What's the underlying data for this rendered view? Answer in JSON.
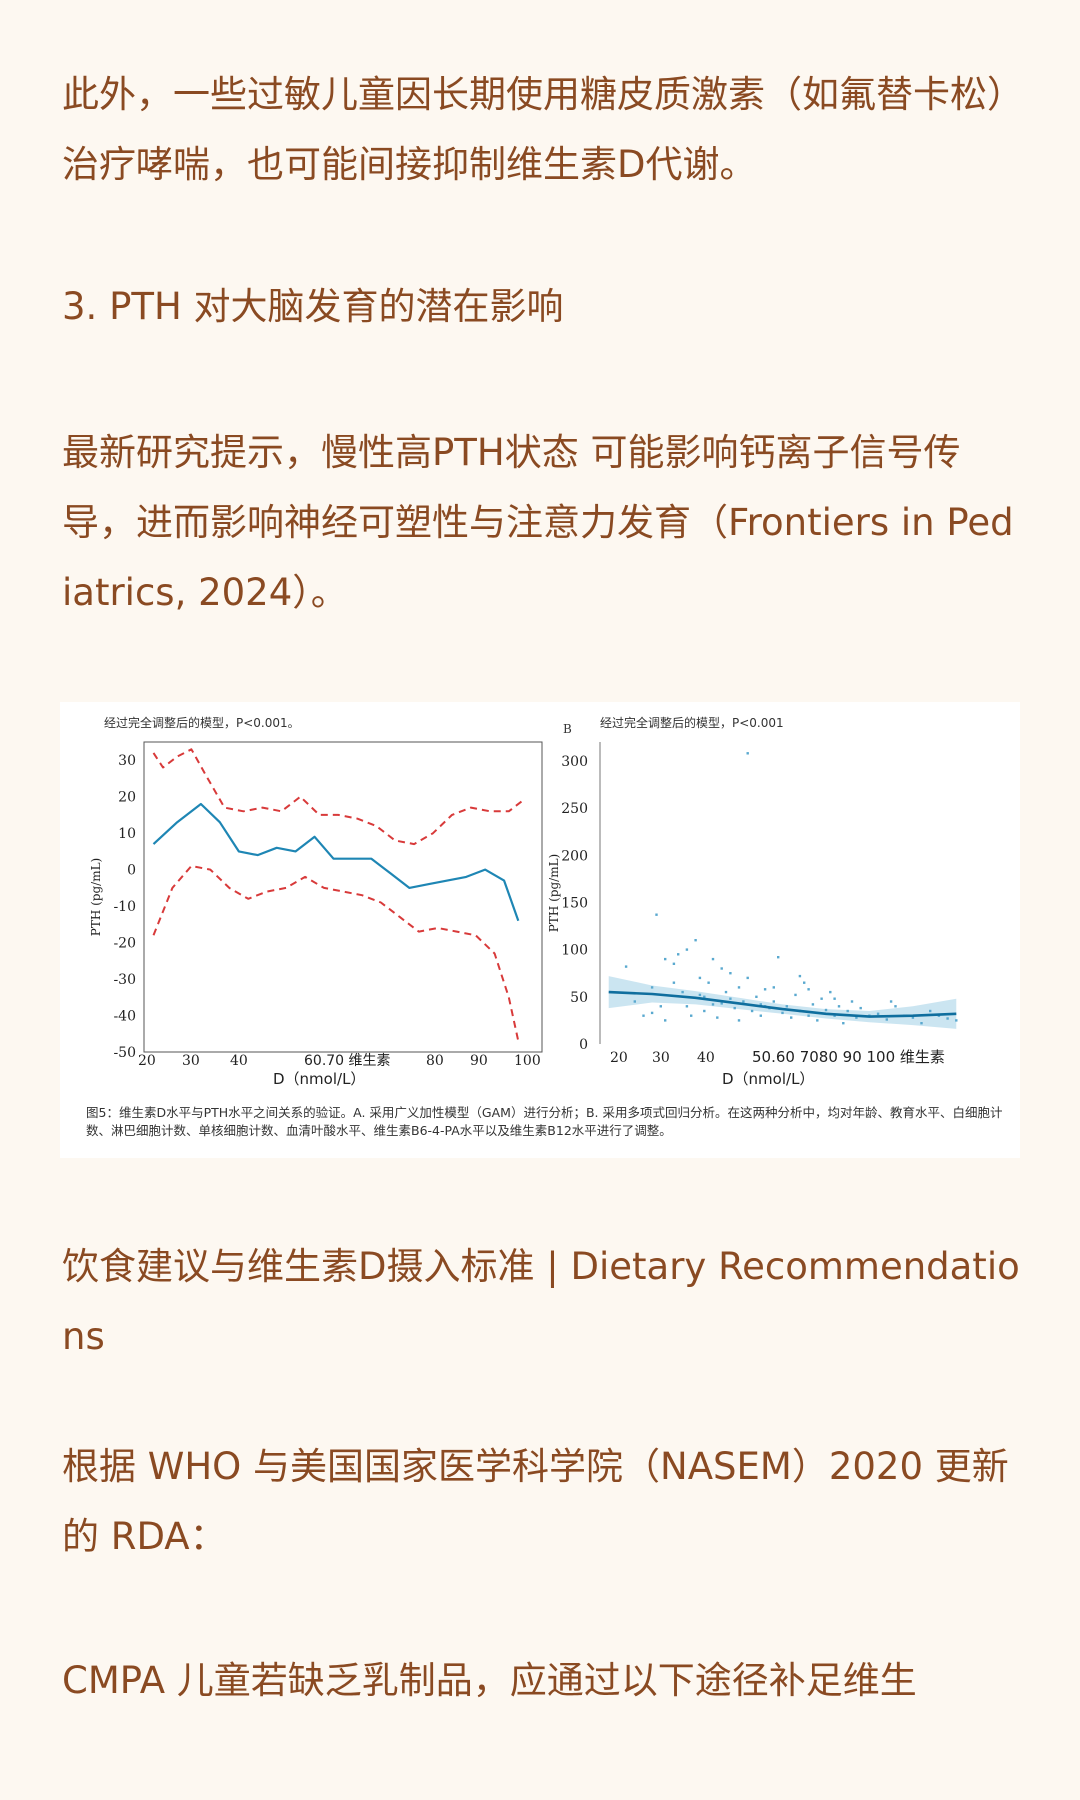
{
  "paragraphs": {
    "p1": "此外，一些过敏儿童因长期使用糖皮质激素（如氟替卡松）治疗哮喘，也可能间接抑制维生素D代谢。",
    "p2": "3. PTH 对大脑发育的潜在影响",
    "p3": "最新研究提示，慢性高PTH状态 可能影响钙离子信号传导，进而影响神经可塑性与注意力发育（Frontiers in Pediatrics, 2024）。",
    "p4": "饮食建议与维生素D摄入标准 | Dietary Recommendations",
    "p5": "根据 WHO 与美国国家医学科学院（NASEM）2020 更新的 RDA：",
    "p6": "CMPA 儿童若缺乏乳制品，应通过以下途径补足维生"
  },
  "figure": {
    "caption": "图5：维生素D水平与PTH水平之间关系的验证。A. 采用广义加性模型（GAM）进行分析；B. 采用多项式回归分析。在这两种分析中，均对年龄、教育水平、白细胞计数、淋巴细胞计数、单核细胞计数、血清叶酸水平、维生素B6-4-PA水平以及维生素B12水平进行了调整。",
    "colors": {
      "fit": "#1e86b4",
      "ci": "#d83a3a",
      "band": "#b9dcec",
      "points": "#5aa9cf"
    }
  },
  "chart_data": [
    {
      "type": "line",
      "title": "经过完全调整后的模型，P<0.001。",
      "xlabel": "D（nmol/L）",
      "ylabel": "PTH (pg/mL)",
      "x_tick_labels": [
        "20",
        "30",
        "40",
        "60.70 维生素",
        "80",
        "90",
        "100"
      ],
      "y_tick_labels": [
        "30",
        "20",
        "10",
        "0",
        "-10",
        "-20",
        "-30",
        "-40",
        "-50"
      ],
      "xlim": [
        18,
        102
      ],
      "ylim": [
        -50,
        35
      ],
      "series": [
        {
          "style": "solid",
          "x": [
            20,
            25,
            30,
            34,
            38,
            42,
            46,
            50,
            54,
            58,
            62,
            66,
            70,
            74,
            78,
            82,
            86,
            90,
            94,
            97
          ],
          "y": [
            7,
            13,
            18,
            13,
            5,
            4,
            6,
            5,
            9,
            3,
            3,
            3,
            -1,
            -5,
            -4,
            -3,
            -2,
            0,
            -3,
            -14
          ]
        },
        {
          "style": "dashed",
          "x": [
            20,
            22,
            25,
            28,
            31,
            35,
            39,
            43,
            47,
            51,
            55,
            59,
            63,
            67,
            71,
            75,
            79,
            83,
            87,
            91,
            95,
            98
          ],
          "y": [
            32,
            28,
            31,
            33,
            26,
            17,
            16,
            17,
            16,
            20,
            15,
            15,
            14,
            12,
            8,
            7,
            10,
            15,
            17,
            16,
            16,
            19
          ]
        },
        {
          "style": "dashed",
          "x": [
            20,
            24,
            28,
            32,
            36,
            40,
            44,
            48,
            52,
            56,
            60,
            64,
            68,
            72,
            76,
            80,
            84,
            88,
            92,
            95,
            97
          ],
          "y": [
            -18,
            -5,
            1,
            0,
            -5,
            -8,
            -6,
            -5,
            -2,
            -5,
            -6,
            -7,
            -9,
            -13,
            -17,
            -16,
            -17,
            -18,
            -23,
            -35,
            -47
          ]
        }
      ]
    },
    {
      "type": "scatter",
      "panel_label": "B",
      "title": "经过完全调整后的模型，P<0.001",
      "xlabel": "D（nmol/L）",
      "ylabel": "PTH (pg/mL)",
      "x_tick_labels": [
        "20",
        "30",
        "40",
        "50.60 7080 90 100 维生素"
      ],
      "y_tick_labels": [
        "300",
        "250",
        "200",
        "150",
        "100",
        "50",
        "0"
      ],
      "xlim": [
        18,
        102
      ],
      "ylim": [
        0,
        320
      ],
      "fit": {
        "x": [
          20,
          30,
          40,
          50,
          60,
          70,
          80,
          90,
          100
        ],
        "y": [
          55,
          53,
          49,
          43,
          37,
          32,
          29,
          30,
          32
        ]
      },
      "band": {
        "x": [
          20,
          30,
          40,
          50,
          60,
          70,
          80,
          90,
          100
        ],
        "upper": [
          72,
          62,
          56,
          49,
          42,
          37,
          35,
          40,
          48
        ],
        "lower": [
          38,
          44,
          42,
          37,
          32,
          27,
          23,
          20,
          16
        ]
      },
      "points": {
        "x": [
          24,
          26,
          28,
          30,
          31,
          32,
          33,
          35,
          36,
          37,
          38,
          39,
          40,
          41,
          42,
          42,
          43,
          44,
          45,
          46,
          47,
          48,
          49,
          50,
          50,
          51,
          52,
          53,
          54,
          55,
          55,
          56,
          57,
          58,
          59,
          60,
          61,
          62,
          63,
          64,
          65,
          66,
          67,
          68,
          69,
          70,
          71,
          72,
          73,
          74,
          75,
          76,
          77,
          78,
          80,
          82,
          84,
          86,
          88,
          90,
          92,
          94,
          96,
          98,
          100,
          30,
          35,
          41,
          46,
          58,
          64,
          85,
          38,
          48,
          33,
          52,
          66,
          72,
          44,
          56
        ],
        "y": [
          82,
          45,
          30,
          60,
          137,
          40,
          25,
          85,
          95,
          55,
          40,
          30,
          110,
          70,
          50,
          35,
          65,
          42,
          28,
          80,
          55,
          48,
          38,
          60,
          25,
          45,
          70,
          35,
          50,
          42,
          30,
          58,
          38,
          45,
          92,
          33,
          40,
          28,
          52,
          35,
          65,
          30,
          42,
          25,
          48,
          36,
          55,
          30,
          40,
          22,
          35,
          45,
          28,
          38,
          30,
          32,
          26,
          40,
          30,
          28,
          22,
          35,
          30,
          27,
          25,
          33,
          65,
          52,
          43,
          60,
          72,
          45,
          100,
          75,
          90,
          308,
          58,
          48,
          90,
          40
        ]
      }
    }
  ]
}
